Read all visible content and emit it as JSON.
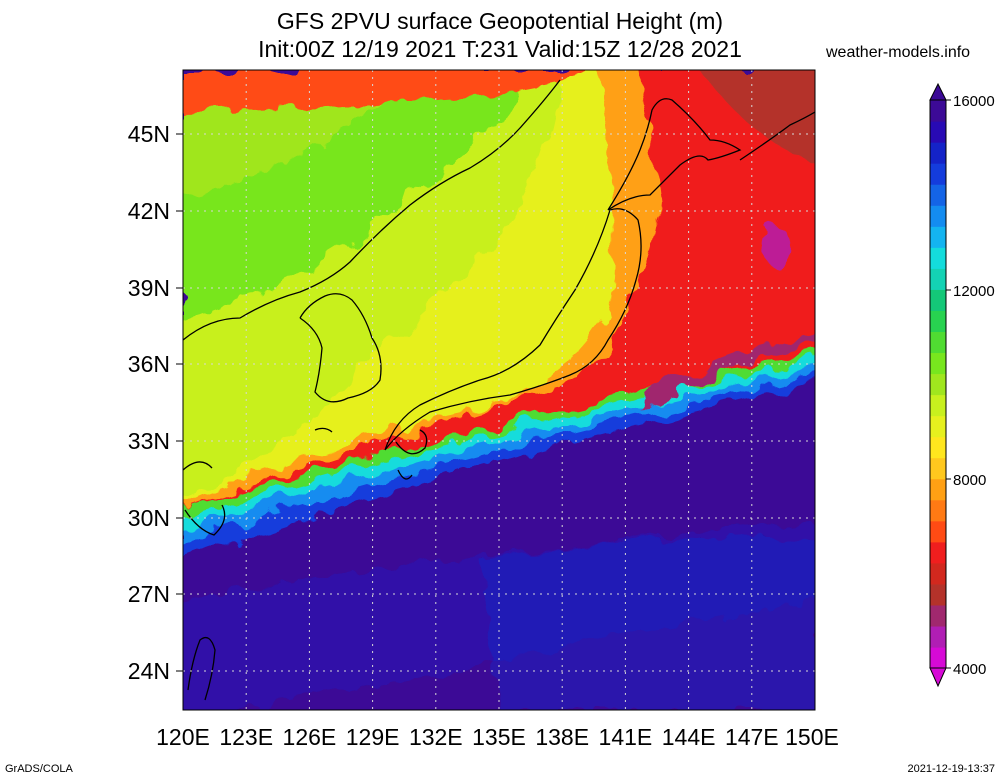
{
  "header": {
    "title_line1": "GFS 2PVU surface Geopotential Height (m)",
    "title_line2": "Init:00Z 12/19 2021 T:231 Valid:15Z 12/28 2021",
    "site": "weather-models.info"
  },
  "footer": {
    "left": "GrADS/COLA",
    "right": "2021-12-19-13:37"
  },
  "map": {
    "lon_ticks": [
      "120E",
      "123E",
      "126E",
      "129E",
      "132E",
      "135E",
      "138E",
      "141E",
      "144E",
      "147E",
      "150E"
    ],
    "lat_ticks": [
      "45N",
      "42N",
      "39N",
      "36N",
      "33N",
      "30N",
      "27N",
      "24N"
    ],
    "lon_range": [
      120,
      150
    ],
    "lat_range": [
      22.5,
      47.5
    ]
  },
  "colorbar": {
    "labels": [
      "16000",
      "12000",
      "8000",
      "4000"
    ],
    "colors": [
      "#d60ad6",
      "#b01eb4",
      "#a0286e",
      "#b4322a",
      "#d2281e",
      "#f01e1e",
      "#ff4b14",
      "#ff7a14",
      "#ffa014",
      "#ffc81e",
      "#ffe61e",
      "#e6f01e",
      "#c8f01e",
      "#a0e61e",
      "#78e61e",
      "#50dc32",
      "#28d250",
      "#14c878",
      "#14d2b4",
      "#14dcdc",
      "#14b4f0",
      "#148cf0",
      "#1464e6",
      "#143cdc",
      "#1423c8",
      "#280ab4",
      "#3c0a96"
    ]
  }
}
